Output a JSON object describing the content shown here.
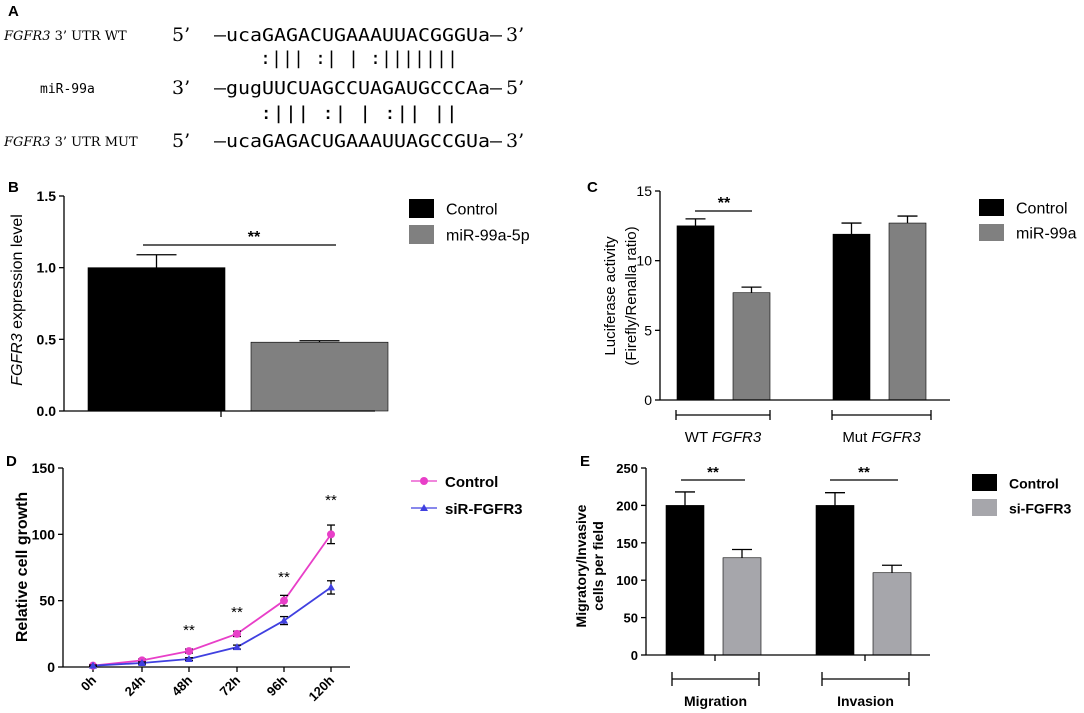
{
  "panels": {
    "A": {
      "letter": "A",
      "rows": [
        {
          "gene": "FGFR3",
          "label_rest": " 3’ UTR WT",
          "label": "",
          "prime_left": "5’",
          "seq": "–ucaGAGACUGAAAUUACGGGUa–",
          "prime_right": "3’"
        },
        {
          "gene": "",
          "label_rest": "",
          "label": "miR-99a",
          "prime_left": "3’",
          "seq": "–gugUUCUAGCCUAGAUGCCCAa–",
          "prime_right": "5’"
        },
        {
          "gene": "FGFR3",
          "label_rest": " 3’ UTR MUT",
          "label": "",
          "prime_left": "5’",
          "seq": "–ucaGAGACUGAAAUUAGCCGUa–",
          "prime_right": "3’"
        }
      ],
      "pairing_wt": ":||| :| | :|||||||",
      "pairing_mut": ":||| :| | :||   ||"
    },
    "B": {
      "letter": "B"
    },
    "C": {
      "letter": "C"
    },
    "D": {
      "letter": "D"
    },
    "E": {
      "letter": "E"
    }
  },
  "chart_data": [
    {
      "panel": "B",
      "type": "bar",
      "categories": [
        "Control",
        "miR-99a-5p"
      ],
      "values": [
        1.0,
        0.48
      ],
      "errors": [
        0.09,
        0.01
      ],
      "colors": [
        "#000000",
        "#808080"
      ],
      "ylabel_gene": "FGFR3",
      "ylabel_rest": " expression level",
      "yticks": [
        "0.0",
        "0.5",
        "1.0",
        "1.5"
      ],
      "ylim": [
        0,
        1.5
      ],
      "legend": [
        "Control",
        "miR-99a-5p"
      ],
      "significance": "**"
    },
    {
      "panel": "C",
      "type": "bar",
      "groups": [
        "WT",
        "Mut"
      ],
      "group_gene": "FGFR3",
      "series": [
        {
          "name": "Control",
          "color": "#000000",
          "values": [
            12.5,
            11.9
          ],
          "errors": [
            0.5,
            0.8
          ]
        },
        {
          "name": "miR-99a",
          "color": "#808080",
          "values": [
            7.7,
            12.7
          ],
          "errors": [
            0.4,
            0.5
          ]
        }
      ],
      "ylabel_line1": "Luciferase activity",
      "ylabel_line2": "(Firefly/Renalla ratio)",
      "yticks": [
        "0",
        "5",
        "10",
        "15"
      ],
      "ylim": [
        0,
        15
      ],
      "significance": "**"
    },
    {
      "panel": "D",
      "type": "line",
      "x": [
        "0h",
        "24h",
        "48h",
        "72h",
        "96h",
        "120h"
      ],
      "series": [
        {
          "name": "Control",
          "color": "#e83fc8",
          "values": [
            1,
            5,
            12,
            25,
            50,
            100
          ],
          "errors": [
            0.5,
            1,
            1.5,
            2,
            4,
            7
          ]
        },
        {
          "name": "siR-FGFR3",
          "color": "#4040e0",
          "values": [
            1,
            3,
            6,
            15,
            35,
            60
          ],
          "errors": [
            0.5,
            0.8,
            1,
            1.5,
            3,
            5
          ]
        }
      ],
      "ylabel": "Relative cell growth",
      "yticks": [
        "0",
        "50",
        "100",
        "150"
      ],
      "ylim": [
        0,
        150
      ],
      "significance": [
        "",
        "",
        "**",
        "**",
        "**",
        "**"
      ]
    },
    {
      "panel": "E",
      "type": "bar",
      "groups": [
        "Migration",
        "Invasion"
      ],
      "series": [
        {
          "name": "Control",
          "color": "#000000",
          "values": [
            200,
            200
          ],
          "errors": [
            18,
            17
          ]
        },
        {
          "name": "si-FGFR3",
          "color": "#a6a6ab",
          "values": [
            130,
            110
          ],
          "errors": [
            11,
            10
          ]
        }
      ],
      "ylabel_line1": "Migratory/Invasive",
      "ylabel_line2": "cells per field",
      "yticks": [
        "0",
        "50",
        "100",
        "150",
        "200",
        "250"
      ],
      "ylim": [
        0,
        250
      ],
      "significance": "**"
    }
  ]
}
